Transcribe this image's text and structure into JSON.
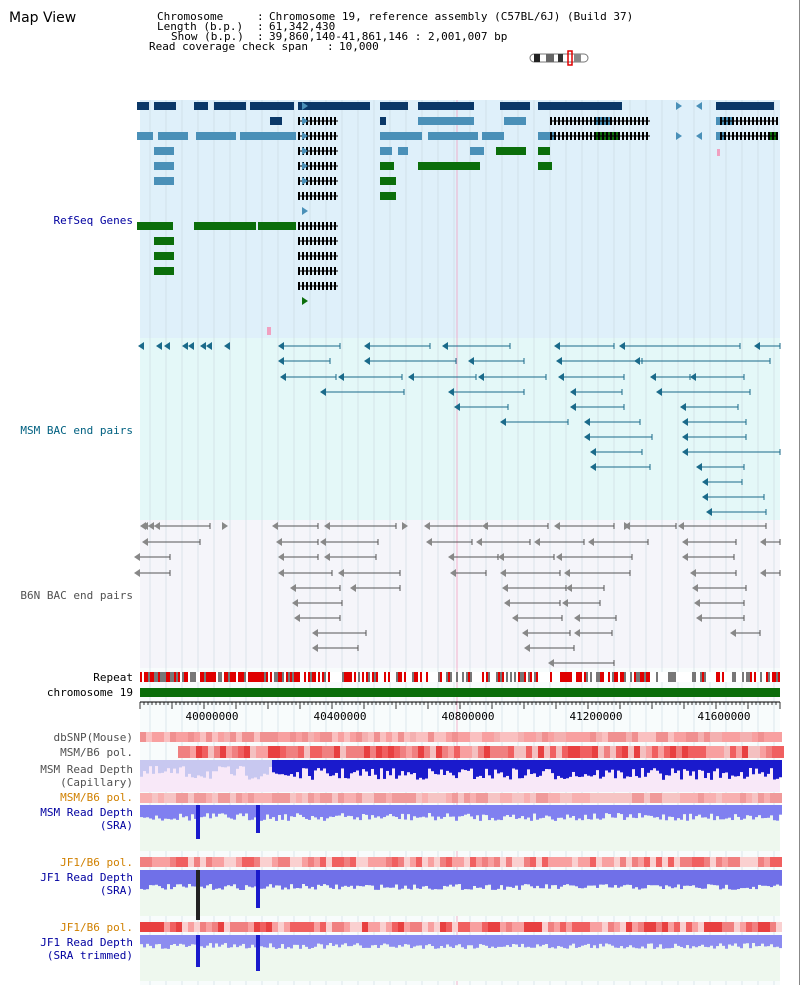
{
  "page_title": "Map View",
  "info": {
    "chromosome_key": "Chromosome",
    "chromosome_value": "Chromosome 19, reference assembly (C57BL/6J) (Build 37)",
    "length_key": "Length (b.p.)",
    "length_value": "61,342,430",
    "show_key": "Show (b.p.)",
    "show_value": "39,860,140-41,861,146 : 2,001,007 bp",
    "coverage_key": "Read coverage check span",
    "coverage_value": "10,000"
  },
  "tracks": {
    "refseq": "RefSeq Genes",
    "msm_bac": "MSM BAC end pairs",
    "b6n_bac": "B6N BAC end pairs",
    "repeat": "Repeat",
    "chromosome": "chromosome 19",
    "dbsnp": "dbSNP(Mouse)",
    "msm_b6_pol_1": "MSM/B6 pol.",
    "msm_capillary_1": "MSM Read Depth",
    "msm_capillary_2": "(Capillary)",
    "msm_b6_pol_2": "MSM/B6 pol.",
    "msm_sra_1": "MSM Read Depth",
    "msm_sra_2": "(SRA)",
    "jf1_pol_1": "JF1/B6 pol.",
    "jf1_sra_1": "JF1 Read Depth",
    "jf1_sra_2": "(SRA)",
    "jf1_pol_2": "JF1/B6 pol.",
    "jf1_trim_1": "JF1 Read Depth",
    "jf1_trim_2": "(SRA trimmed)"
  },
  "ruler": {
    "ticks": [
      "40000000",
      "40400000",
      "40800000",
      "41200000",
      "41600000"
    ]
  },
  "colors": {
    "refseq_bg": "#dff0fa",
    "msm_bg": "#e4f8f8",
    "b6n_bg": "#f5f5fa",
    "gene_dark": "#0b3868",
    "gene_mid": "#4a90b8",
    "gene_green": "#0b6e0b",
    "msm_line": "#1a6a8a",
    "b6n_line": "#555555",
    "chrom_green": "#0a6e0a",
    "label_blue": "#0000a0",
    "label_teal": "#006080",
    "label_gray": "#505050",
    "label_orange": "#d08000",
    "depth_blue": "#1a1acc",
    "depth_light": "#8080f0"
  }
}
